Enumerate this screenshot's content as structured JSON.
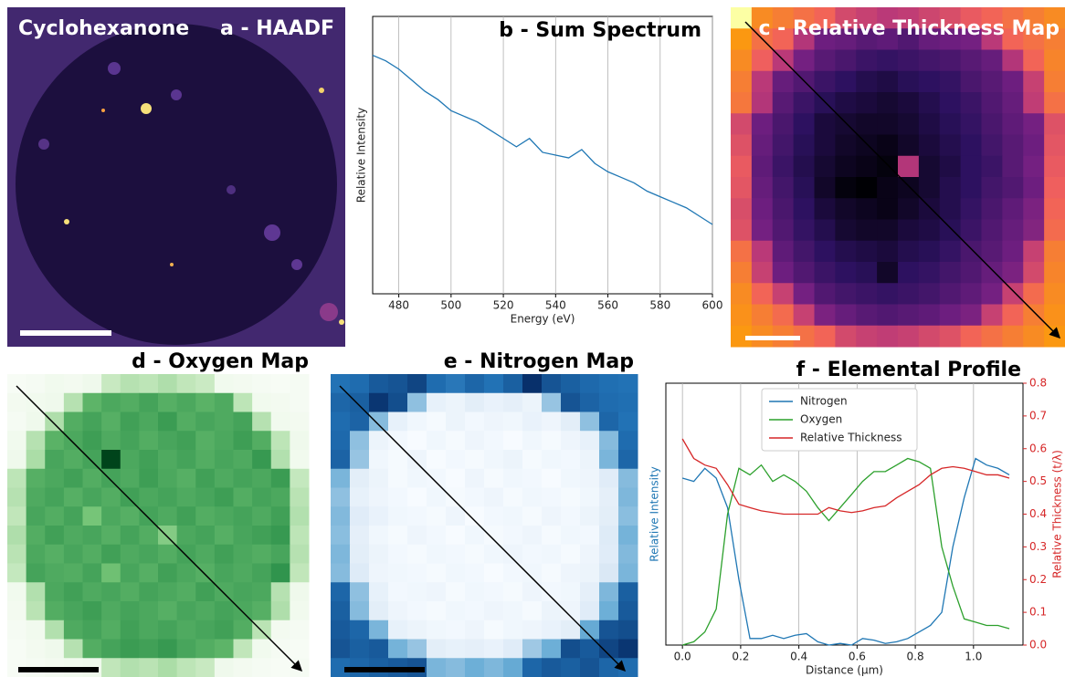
{
  "chart_data": [
    {
      "type": "image",
      "title": "a - HAADF",
      "annotation": "Cyclohexanone"
    },
    {
      "type": "line",
      "title": "b - Sum Spectrum",
      "xlabel": "Energy (eV)",
      "ylabel": "Relative Intensity",
      "x": [
        470,
        475,
        480,
        485,
        490,
        495,
        500,
        505,
        510,
        515,
        520,
        525,
        530,
        535,
        540,
        545,
        550,
        555,
        560,
        565,
        570,
        575,
        580,
        585,
        590,
        595,
        600
      ],
      "values": [
        0.86,
        0.84,
        0.81,
        0.77,
        0.73,
        0.7,
        0.66,
        0.64,
        0.62,
        0.59,
        0.56,
        0.53,
        0.56,
        0.51,
        0.5,
        0.49,
        0.52,
        0.47,
        0.44,
        0.42,
        0.4,
        0.37,
        0.35,
        0.33,
        0.31,
        0.28,
        0.25
      ],
      "color": "#1f77b4",
      "xlim": [
        470,
        600
      ],
      "ylim": [
        0,
        1
      ],
      "xticks": [
        480,
        500,
        520,
        540,
        560,
        580,
        600
      ],
      "grid": true
    },
    {
      "type": "heatmap",
      "title": "c - Relative Thickness Map",
      "colormap": [
        "#000004",
        "#2c115f",
        "#721f81",
        "#b73779",
        "#f1605d",
        "#fc9f07",
        "#fcffa4"
      ],
      "values": [
        [
          0.85,
          0.72,
          0.7,
          0.68,
          0.66,
          0.6,
          0.58,
          0.56,
          0.57,
          0.59,
          0.61,
          0.64,
          0.66,
          0.68,
          0.7,
          0.72
        ],
        [
          0.74,
          0.68,
          0.66,
          0.55,
          0.45,
          0.44,
          0.42,
          0.43,
          0.41,
          0.44,
          0.45,
          0.46,
          0.56,
          0.66,
          0.68,
          0.7
        ],
        [
          0.72,
          0.65,
          0.56,
          0.46,
          0.42,
          0.4,
          0.38,
          0.37,
          0.38,
          0.39,
          0.4,
          0.42,
          0.44,
          0.55,
          0.66,
          0.71
        ],
        [
          0.7,
          0.56,
          0.44,
          0.41,
          0.38,
          0.36,
          0.34,
          0.33,
          0.35,
          0.36,
          0.37,
          0.4,
          0.42,
          0.45,
          0.58,
          0.7
        ],
        [
          0.69,
          0.55,
          0.42,
          0.38,
          0.35,
          0.33,
          0.32,
          0.31,
          0.32,
          0.34,
          0.36,
          0.38,
          0.41,
          0.44,
          0.57,
          0.68
        ],
        [
          0.6,
          0.45,
          0.4,
          0.36,
          0.32,
          0.31,
          0.3,
          0.3,
          0.31,
          0.33,
          0.35,
          0.37,
          0.4,
          0.43,
          0.46,
          0.62
        ],
        [
          0.62,
          0.44,
          0.39,
          0.35,
          0.32,
          0.3,
          0.29,
          0.28,
          0.3,
          0.32,
          0.34,
          0.36,
          0.39,
          0.42,
          0.45,
          0.63
        ],
        [
          0.64,
          0.43,
          0.38,
          0.34,
          0.31,
          0.29,
          0.28,
          0.27,
          0.55,
          0.31,
          0.33,
          0.36,
          0.38,
          0.42,
          0.46,
          0.64
        ],
        [
          0.63,
          0.44,
          0.39,
          0.35,
          0.3,
          0.27,
          0.26,
          0.28,
          0.29,
          0.31,
          0.34,
          0.36,
          0.39,
          0.41,
          0.45,
          0.65
        ],
        [
          0.61,
          0.45,
          0.4,
          0.36,
          0.32,
          0.3,
          0.29,
          0.28,
          0.3,
          0.32,
          0.34,
          0.37,
          0.4,
          0.43,
          0.47,
          0.66
        ],
        [
          0.62,
          0.46,
          0.41,
          0.37,
          0.34,
          0.31,
          0.3,
          0.3,
          0.32,
          0.33,
          0.35,
          0.38,
          0.41,
          0.44,
          0.48,
          0.67
        ],
        [
          0.68,
          0.56,
          0.43,
          0.39,
          0.36,
          0.34,
          0.33,
          0.32,
          0.34,
          0.35,
          0.37,
          0.4,
          0.42,
          0.45,
          0.58,
          0.7
        ],
        [
          0.7,
          0.58,
          0.45,
          0.41,
          0.38,
          0.36,
          0.35,
          0.3,
          0.36,
          0.37,
          0.39,
          0.41,
          0.44,
          0.47,
          0.6,
          0.71
        ],
        [
          0.72,
          0.66,
          0.58,
          0.46,
          0.41,
          0.39,
          0.38,
          0.37,
          0.38,
          0.39,
          0.41,
          0.43,
          0.46,
          0.58,
          0.67,
          0.72
        ],
        [
          0.73,
          0.7,
          0.67,
          0.58,
          0.47,
          0.44,
          0.42,
          0.41,
          0.42,
          0.43,
          0.45,
          0.47,
          0.58,
          0.66,
          0.7,
          0.73
        ],
        [
          0.74,
          0.72,
          0.7,
          0.68,
          0.66,
          0.6,
          0.58,
          0.57,
          0.58,
          0.6,
          0.62,
          0.66,
          0.68,
          0.7,
          0.72,
          0.74
        ]
      ]
    },
    {
      "type": "heatmap",
      "title": "d - Oxygen Map",
      "colormap": [
        "#f7fcf5",
        "#c7e9c0",
        "#74c476",
        "#238b45",
        "#00441b"
      ],
      "values": [
        [
          0.02,
          0.03,
          0.05,
          0.04,
          0.06,
          0.25,
          0.3,
          0.28,
          0.32,
          0.27,
          0.24,
          0.05,
          0.04,
          0.03,
          0.02,
          0.03
        ],
        [
          0.04,
          0.05,
          0.06,
          0.3,
          0.55,
          0.6,
          0.58,
          0.62,
          0.57,
          0.6,
          0.56,
          0.59,
          0.28,
          0.05,
          0.04,
          0.03
        ],
        [
          0.03,
          0.06,
          0.32,
          0.58,
          0.62,
          0.57,
          0.63,
          0.6,
          0.65,
          0.58,
          0.61,
          0.59,
          0.62,
          0.3,
          0.05,
          0.04
        ],
        [
          0.05,
          0.3,
          0.56,
          0.6,
          0.64,
          0.59,
          0.62,
          0.58,
          0.61,
          0.63,
          0.57,
          0.6,
          0.64,
          0.58,
          0.28,
          0.06
        ],
        [
          0.06,
          0.33,
          0.61,
          0.58,
          0.62,
          0.95,
          0.6,
          0.63,
          0.59,
          0.62,
          0.58,
          0.61,
          0.59,
          0.66,
          0.31,
          0.05
        ],
        [
          0.28,
          0.57,
          0.6,
          0.63,
          0.58,
          0.62,
          0.59,
          0.64,
          0.6,
          0.57,
          0.63,
          0.59,
          0.62,
          0.6,
          0.65,
          0.26
        ],
        [
          0.3,
          0.59,
          0.62,
          0.57,
          0.61,
          0.58,
          0.63,
          0.6,
          0.62,
          0.59,
          0.61,
          0.64,
          0.58,
          0.62,
          0.6,
          0.29
        ],
        [
          0.27,
          0.61,
          0.58,
          0.62,
          0.48,
          0.6,
          0.57,
          0.62,
          0.59,
          0.63,
          0.58,
          0.6,
          0.62,
          0.59,
          0.63,
          0.31
        ],
        [
          0.32,
          0.58,
          0.63,
          0.59,
          0.61,
          0.57,
          0.62,
          0.58,
          0.44,
          0.6,
          0.62,
          0.57,
          0.61,
          0.63,
          0.66,
          0.28
        ],
        [
          0.29,
          0.6,
          0.57,
          0.61,
          0.58,
          0.63,
          0.59,
          0.61,
          0.58,
          0.62,
          0.59,
          0.63,
          0.6,
          0.58,
          0.61,
          0.3
        ],
        [
          0.26,
          0.62,
          0.59,
          0.58,
          0.62,
          0.5,
          0.61,
          0.57,
          0.63,
          0.6,
          0.57,
          0.61,
          0.59,
          0.62,
          0.68,
          0.27
        ],
        [
          0.05,
          0.31,
          0.6,
          0.63,
          0.59,
          0.61,
          0.58,
          0.62,
          0.6,
          0.58,
          0.63,
          0.59,
          0.61,
          0.6,
          0.3,
          0.06
        ],
        [
          0.04,
          0.29,
          0.58,
          0.61,
          0.64,
          0.59,
          0.62,
          0.6,
          0.57,
          0.61,
          0.59,
          0.62,
          0.6,
          0.57,
          0.32,
          0.05
        ],
        [
          0.03,
          0.05,
          0.31,
          0.59,
          0.62,
          0.58,
          0.63,
          0.6,
          0.62,
          0.59,
          0.61,
          0.63,
          0.58,
          0.29,
          0.04,
          0.03
        ],
        [
          0.02,
          0.04,
          0.06,
          0.3,
          0.58,
          0.62,
          0.65,
          0.63,
          0.66,
          0.61,
          0.58,
          0.55,
          0.27,
          0.05,
          0.03,
          0.02
        ],
        [
          0.02,
          0.03,
          0.04,
          0.05,
          0.06,
          0.27,
          0.31,
          0.29,
          0.33,
          0.28,
          0.25,
          0.06,
          0.04,
          0.03,
          0.02,
          0.03
        ]
      ]
    },
    {
      "type": "heatmap",
      "title": "e - Nitrogen Map",
      "colormap": [
        "#f7fbff",
        "#c6dbef",
        "#6baed6",
        "#2171b5",
        "#08306b"
      ],
      "values": [
        [
          0.7,
          0.72,
          0.78,
          0.8,
          0.85,
          0.72,
          0.68,
          0.74,
          0.7,
          0.76,
          0.92,
          0.8,
          0.76,
          0.73,
          0.71,
          0.7
        ],
        [
          0.74,
          0.76,
          0.9,
          0.82,
          0.4,
          0.12,
          0.1,
          0.14,
          0.11,
          0.13,
          0.1,
          0.38,
          0.8,
          0.75,
          0.72,
          0.71
        ],
        [
          0.72,
          0.75,
          0.42,
          0.12,
          0.08,
          0.06,
          0.1,
          0.07,
          0.09,
          0.08,
          0.11,
          0.09,
          0.14,
          0.4,
          0.74,
          0.7
        ],
        [
          0.73,
          0.4,
          0.1,
          0.07,
          0.05,
          0.08,
          0.06,
          0.09,
          0.07,
          0.05,
          0.08,
          0.06,
          0.09,
          0.12,
          0.42,
          0.72
        ],
        [
          0.75,
          0.38,
          0.08,
          0.06,
          0.09,
          0.05,
          0.07,
          0.06,
          0.08,
          0.1,
          0.06,
          0.08,
          0.07,
          0.1,
          0.45,
          0.74
        ],
        [
          0.45,
          0.14,
          0.1,
          0.06,
          0.08,
          0.07,
          0.05,
          0.09,
          0.06,
          0.08,
          0.07,
          0.05,
          0.08,
          0.09,
          0.15,
          0.42
        ],
        [
          0.4,
          0.12,
          0.09,
          0.07,
          0.05,
          0.08,
          0.06,
          0.07,
          0.09,
          0.06,
          0.08,
          0.07,
          0.06,
          0.08,
          0.13,
          0.44
        ],
        [
          0.43,
          0.15,
          0.11,
          0.08,
          0.07,
          0.06,
          0.09,
          0.05,
          0.07,
          0.08,
          0.06,
          0.09,
          0.07,
          0.1,
          0.14,
          0.41
        ],
        [
          0.41,
          0.13,
          0.08,
          0.06,
          0.09,
          0.07,
          0.05,
          0.08,
          0.06,
          0.07,
          0.09,
          0.06,
          0.08,
          0.07,
          0.16,
          0.46
        ],
        [
          0.44,
          0.14,
          0.1,
          0.07,
          0.06,
          0.08,
          0.07,
          0.06,
          0.08,
          0.09,
          0.07,
          0.08,
          0.06,
          0.09,
          0.15,
          0.43
        ],
        [
          0.42,
          0.16,
          0.09,
          0.08,
          0.07,
          0.06,
          0.08,
          0.07,
          0.05,
          0.07,
          0.08,
          0.06,
          0.09,
          0.1,
          0.18,
          0.45
        ],
        [
          0.74,
          0.4,
          0.12,
          0.07,
          0.08,
          0.09,
          0.06,
          0.08,
          0.07,
          0.06,
          0.09,
          0.07,
          0.08,
          0.13,
          0.44,
          0.76
        ],
        [
          0.76,
          0.42,
          0.14,
          0.09,
          0.07,
          0.06,
          0.08,
          0.07,
          0.09,
          0.08,
          0.06,
          0.1,
          0.09,
          0.15,
          0.48,
          0.78
        ],
        [
          0.78,
          0.74,
          0.45,
          0.12,
          0.1,
          0.08,
          0.07,
          0.09,
          0.06,
          0.08,
          0.09,
          0.11,
          0.14,
          0.5,
          0.8,
          0.82
        ],
        [
          0.8,
          0.76,
          0.78,
          0.46,
          0.38,
          0.14,
          0.12,
          0.13,
          0.11,
          0.15,
          0.36,
          0.48,
          0.82,
          0.78,
          0.85,
          0.9
        ],
        [
          0.72,
          0.74,
          0.76,
          0.78,
          0.8,
          0.45,
          0.42,
          0.48,
          0.44,
          0.5,
          0.74,
          0.78,
          0.76,
          0.8,
          0.74,
          0.72
        ]
      ]
    },
    {
      "type": "line",
      "title": "f - Elemental Profile",
      "xlabel": "Distance (μm)",
      "ylabel": "Relative Intensity",
      "y2label": "Relative Thickness (t/λ)",
      "x": [
        0,
        0.039,
        0.077,
        0.116,
        0.155,
        0.194,
        0.232,
        0.271,
        0.31,
        0.348,
        0.387,
        0.426,
        0.465,
        0.503,
        0.542,
        0.581,
        0.619,
        0.658,
        0.697,
        0.736,
        0.774,
        0.813,
        0.852,
        0.891,
        0.929,
        0.968,
        1.007,
        1.045,
        1.084,
        1.123
      ],
      "series": [
        {
          "name": "Nitrogen",
          "color": "#1f77b4",
          "values": [
            0.51,
            0.5,
            0.54,
            0.51,
            0.42,
            0.2,
            0.02,
            0.02,
            0.03,
            0.02,
            0.03,
            0.035,
            0.01,
            0.0,
            0.005,
            0.0,
            0.02,
            0.015,
            0.005,
            0.01,
            0.02,
            0.04,
            0.06,
            0.1,
            0.3,
            0.45,
            0.57,
            0.55,
            0.54,
            0.52
          ]
        },
        {
          "name": "Oxygen",
          "color": "#2ca02c",
          "values": [
            0.0,
            0.01,
            0.04,
            0.11,
            0.4,
            0.54,
            0.52,
            0.55,
            0.5,
            0.52,
            0.5,
            0.47,
            0.42,
            0.38,
            0.42,
            0.46,
            0.5,
            0.53,
            0.53,
            0.55,
            0.57,
            0.56,
            0.54,
            0.3,
            0.18,
            0.08,
            0.07,
            0.06,
            0.06,
            0.05
          ]
        },
        {
          "name": "Relative Thickness",
          "color": "#d62728",
          "axis": "y2",
          "values": [
            0.63,
            0.57,
            0.55,
            0.54,
            0.49,
            0.43,
            0.42,
            0.41,
            0.405,
            0.4,
            0.4,
            0.4,
            0.4,
            0.42,
            0.41,
            0.405,
            0.41,
            0.42,
            0.425,
            0.45,
            0.47,
            0.49,
            0.52,
            0.54,
            0.545,
            0.54,
            0.53,
            0.52,
            0.52,
            0.51
          ]
        }
      ],
      "xlim": [
        -0.057,
        1.17
      ],
      "ylim": [
        0,
        0.8
      ],
      "y2lim": [
        0,
        0.8
      ],
      "xticks": [
        {
          "value": 0,
          "label": "0.0"
        },
        {
          "value": 0.2,
          "label": "0.2"
        },
        {
          "value": 0.4,
          "label": "0.4"
        },
        {
          "value": 0.6,
          "label": "0.6"
        },
        {
          "value": 0.8,
          "label": "0.8"
        },
        {
          "value": 1,
          "label": "1.0"
        }
      ],
      "y2ticks": [
        {
          "value": 0,
          "label": "0.0"
        },
        0.1,
        0.2,
        0.3,
        0.4,
        0.5,
        0.6,
        0.7,
        0.8
      ],
      "grid": true,
      "legend": "upper left"
    }
  ]
}
